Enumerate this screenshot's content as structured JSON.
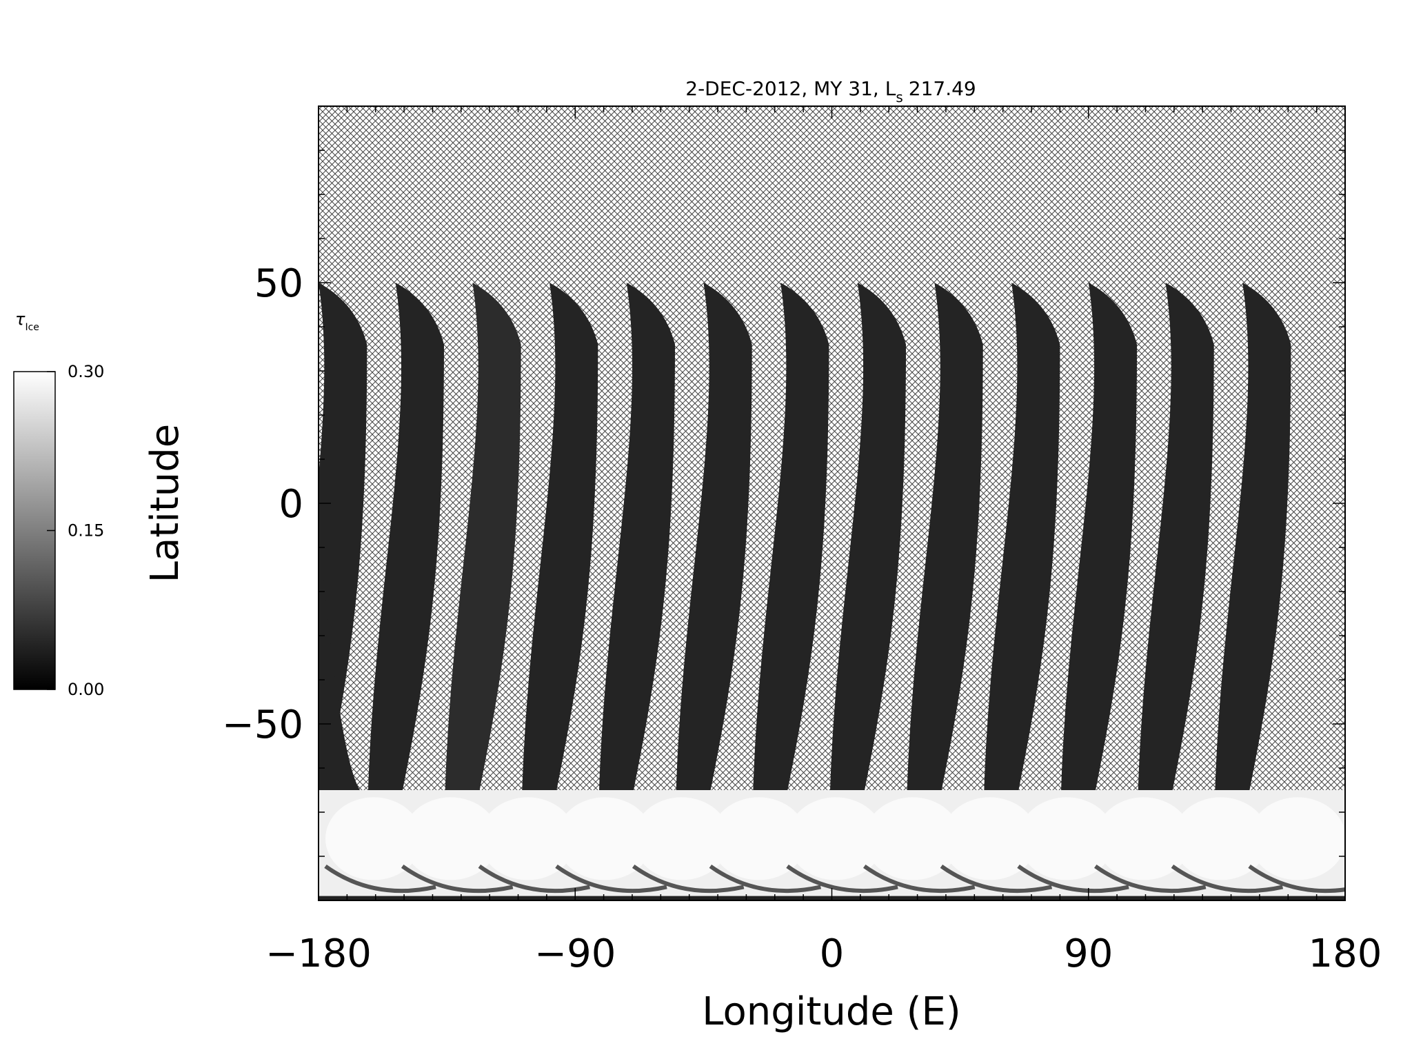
{
  "chart_data": {
    "type": "heatmap",
    "title": "2-DEC-2012, MY 31,  L",
    "title_subscript": "s",
    "title_value": "217.49",
    "xlabel": "Longitude (E)",
    "ylabel": "Latitude",
    "xlim": [
      -180,
      180
    ],
    "ylim": [
      -90,
      90
    ],
    "x_ticks": [
      -180,
      -90,
      0,
      90,
      180
    ],
    "y_ticks": [
      -50,
      0,
      50
    ],
    "x_tick_labels": [
      "−180",
      "−90",
      "0",
      "90",
      "180"
    ],
    "y_tick_labels": [
      "−50",
      "0",
      "50"
    ],
    "grid": false,
    "colorbar": {
      "label": "τ",
      "label_subscript": "Ice",
      "min": 0.0,
      "max": 0.3,
      "ticks": [
        "0.00",
        "0.15",
        "0.30"
      ],
      "colormap": "grayscale"
    },
    "no_data_pattern": "cross-hatch",
    "swaths": [
      {
        "lon_top": -180,
        "value": 0.02
      },
      {
        "lon_top": -153,
        "value": 0.02
      },
      {
        "lon_top": -126,
        "value": 0.03
      },
      {
        "lon_top": -99,
        "value": 0.02
      },
      {
        "lon_top": -72,
        "value": 0.02
      },
      {
        "lon_top": -45,
        "value": 0.02
      },
      {
        "lon_top": -18,
        "value": 0.02
      },
      {
        "lon_top": 9,
        "value": 0.02
      },
      {
        "lon_top": 36,
        "value": 0.02
      },
      {
        "lon_top": 63,
        "value": 0.02
      },
      {
        "lon_top": 90,
        "value": 0.02
      },
      {
        "lon_top": 117,
        "value": 0.02
      },
      {
        "lon_top": 144,
        "value": 0.02
      }
    ],
    "swath_lat_range": [
      -65,
      50
    ],
    "south_polar_band": {
      "lat_range": [
        -90,
        -65
      ],
      "value": 0.28
    }
  }
}
